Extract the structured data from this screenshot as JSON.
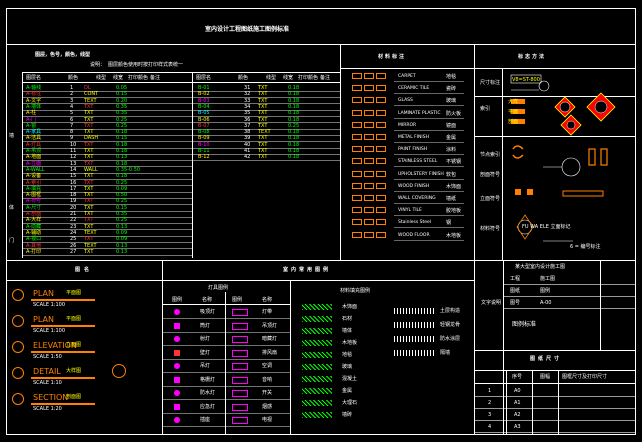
{
  "sheet": {
    "title": "室内设计工程图纸施工图例标准",
    "colors": {
      "frame": "#ffffff",
      "yellow": "#ffff00",
      "green": "#00ff00",
      "red": "#ff3333",
      "magenta": "#ff00ff",
      "cyan": "#00ffff",
      "orange": "#ff8000",
      "blue": "#3b6cff"
    }
  },
  "layers": {
    "heading": "图层，色号，颜色，线型",
    "note_label": "说明：",
    "note": "图层颜色使用时按打印样式表统一",
    "headers": [
      "图层名",
      "颜色",
      "线型",
      "线宽",
      "打印颜色",
      "备注"
    ],
    "group_labels": [
      "墙",
      "体",
      "门"
    ],
    "left_rows": [
      [
        "A-轴线",
        "1",
        "DL",
        "0.05"
      ],
      [
        "A-标注",
        "2",
        "CONT",
        "0.15"
      ],
      [
        "A-文字",
        "3",
        "TEXT",
        "0.20"
      ],
      [
        "A-墙体",
        "4",
        "TXT",
        "0.35"
      ],
      [
        "A-柱",
        "5",
        "TXT",
        "0.35"
      ],
      [
        "A-门",
        "6",
        "TXT",
        "0.25"
      ],
      [
        "A-窗",
        "7",
        "TXT",
        "0.25"
      ],
      [
        "A-家具",
        "8",
        "TXT",
        "0.18"
      ],
      [
        "A-洁具",
        "9",
        "DASH",
        "0.15"
      ],
      [
        "A-灯具",
        "10",
        "TXT",
        "0.18"
      ],
      [
        "A-吊顶",
        "11",
        "TXT",
        "0.18"
      ],
      [
        "A-地面",
        "12",
        "TXT",
        "0.13"
      ],
      [
        "A-立面",
        "13",
        "TXT",
        "0.18"
      ],
      [
        "A-WALL",
        "14",
        "WALL",
        "0.35-0.50"
      ],
      [
        "A-设备",
        "15",
        "TXT",
        "0.18"
      ],
      [
        "A-索引",
        "16",
        "TXT",
        "0.25"
      ],
      [
        "A-填充",
        "17",
        "TXT",
        "0.09"
      ],
      [
        "A-图框",
        "18",
        "TXT",
        "0.50"
      ],
      [
        "A-符号",
        "19",
        "TXT",
        "0.25"
      ],
      [
        "A-尺寸",
        "20",
        "TXT",
        "0.15"
      ],
      [
        "A-剖面",
        "21",
        "TXT",
        "0.35"
      ],
      [
        "A-大样",
        "22",
        "TXT",
        "0.25"
      ],
      [
        "A-隐藏",
        "23",
        "TXT",
        "0.13"
      ],
      [
        "A-辅助",
        "24",
        "TEXT",
        "0.09"
      ],
      [
        "A-视口",
        "25",
        "TXT",
        "0.09"
      ],
      [
        "A-其他",
        "26",
        "TEXT",
        "0.13"
      ],
      [
        "A-打印",
        "27",
        "TXT",
        "0.13"
      ]
    ],
    "right_rows": [
      [
        "B-01",
        "31",
        "TXT",
        "0.18"
      ],
      [
        "B-02",
        "32",
        "TXT",
        "0.18"
      ],
      [
        "B-03",
        "33",
        "TXT",
        "0.18"
      ],
      [
        "B-04",
        "34",
        "TXT",
        "0.18"
      ],
      [
        "B-05",
        "35",
        "TXT",
        "0.18"
      ],
      [
        "B-06",
        "36",
        "TXT",
        "0.18"
      ],
      [
        "B-07",
        "37",
        "TXT",
        "0.25"
      ],
      [
        "B-08",
        "38",
        "TEXT",
        "0.18"
      ],
      [
        "B-09",
        "39",
        "TXT",
        "0.18"
      ],
      [
        "B-10",
        "40",
        "TXT",
        "0.18"
      ],
      [
        "B-11",
        "41",
        "TXT",
        "0.18"
      ],
      [
        "B-12",
        "42",
        "TXT",
        "0.18"
      ]
    ]
  },
  "materials": {
    "heading": "材料标注",
    "items": [
      [
        "CARPET",
        "地毯"
      ],
      [
        "CERAMIC TILE",
        "瓷砖"
      ],
      [
        "GLASS",
        "玻璃"
      ],
      [
        "LAMINATE PLASTIC",
        "防火板"
      ],
      [
        "MIRROR",
        "镜面"
      ],
      [
        "METAL FINISH",
        "金属"
      ],
      [
        "PAINT FINISH",
        "涂料"
      ],
      [
        "STAINLESS STEEL",
        "不锈钢"
      ],
      [
        "UPHOLSTERY FINISH",
        "软包"
      ],
      [
        "WOOD FINISH",
        "木饰面"
      ],
      [
        "WALL COVERING",
        "墙纸"
      ],
      [
        "VINYL TILE",
        "胶地板"
      ],
      [
        "Stainless Steel",
        "钢"
      ],
      [
        "WOOD FLOOR",
        "木地板"
      ]
    ]
  },
  "symbols": {
    "heading": "标志方法",
    "rows": [
      "尺寸标注",
      "索引",
      "节点索引",
      "剖面符号",
      "立面符号",
      "材料符号"
    ],
    "dim_text": "V8=ST-800",
    "note": "FU WA ELE 立面标记",
    "note2": "6 = 编号标注",
    "idx_labels": [
      "大样",
      "平面",
      "剖面",
      "立面"
    ]
  },
  "drawing_titles": {
    "heading": "图名",
    "items": [
      {
        "name": "PLAN",
        "cn": "平面图",
        "scale": "SCALE 1:100"
      },
      {
        "name": "PLAN",
        "cn": "平面图",
        "scale": "SCALE 1:100"
      },
      {
        "name": "ELEVATION",
        "cn": "立面图",
        "scale": "SCALE 1:50"
      },
      {
        "name": "DETAIL",
        "cn": "大样图",
        "scale": "SCALE 1:10"
      },
      {
        "name": "SECTION",
        "cn": "剖面图",
        "scale": "SCALE 1:20"
      }
    ]
  },
  "legend": {
    "heading": "室内常用图例",
    "sub_heading": "灯具图例",
    "headers": [
      "图例",
      "名称",
      "图例",
      "名称"
    ],
    "left_names": [
      "吸顶灯",
      "筒灯",
      "射灯",
      "壁灯",
      "吊灯",
      "格栅灯",
      "防水灯",
      "应急灯",
      "插座"
    ],
    "right_names": [
      "灯带",
      "吊顶灯",
      "暗藏灯",
      "排风扇",
      "空调",
      "音响",
      "开关",
      "烟感",
      "电视"
    ],
    "hatch_heading": "材料填充图例",
    "hatch_names": [
      "木饰面",
      "石材",
      "墙体",
      "木地板",
      "地毯",
      "玻璃",
      "混凝土",
      "金属",
      "大理石",
      "墙砖"
    ],
    "hatch_names2": [
      "土层构造",
      "轻钢龙骨",
      "防水涂层",
      "隔墙"
    ]
  },
  "title_block": {
    "label": "文字说明",
    "fields": [
      [
        "工程",
        "施工图"
      ],
      [
        "图纸",
        "图例"
      ],
      [
        "图号",
        "A-00"
      ]
    ],
    "project": "某大型室内设计施工图",
    "drawing_name": "图例标准",
    "dim_heading": "图纸尺寸",
    "dim_headers": [
      "序号",
      "图幅",
      "图框尺寸及打印尺寸"
    ],
    "dim_rows": [
      [
        "1",
        "A0"
      ],
      [
        "2",
        "A1"
      ],
      [
        "3",
        "A2"
      ],
      [
        "4",
        "A3"
      ]
    ]
  }
}
